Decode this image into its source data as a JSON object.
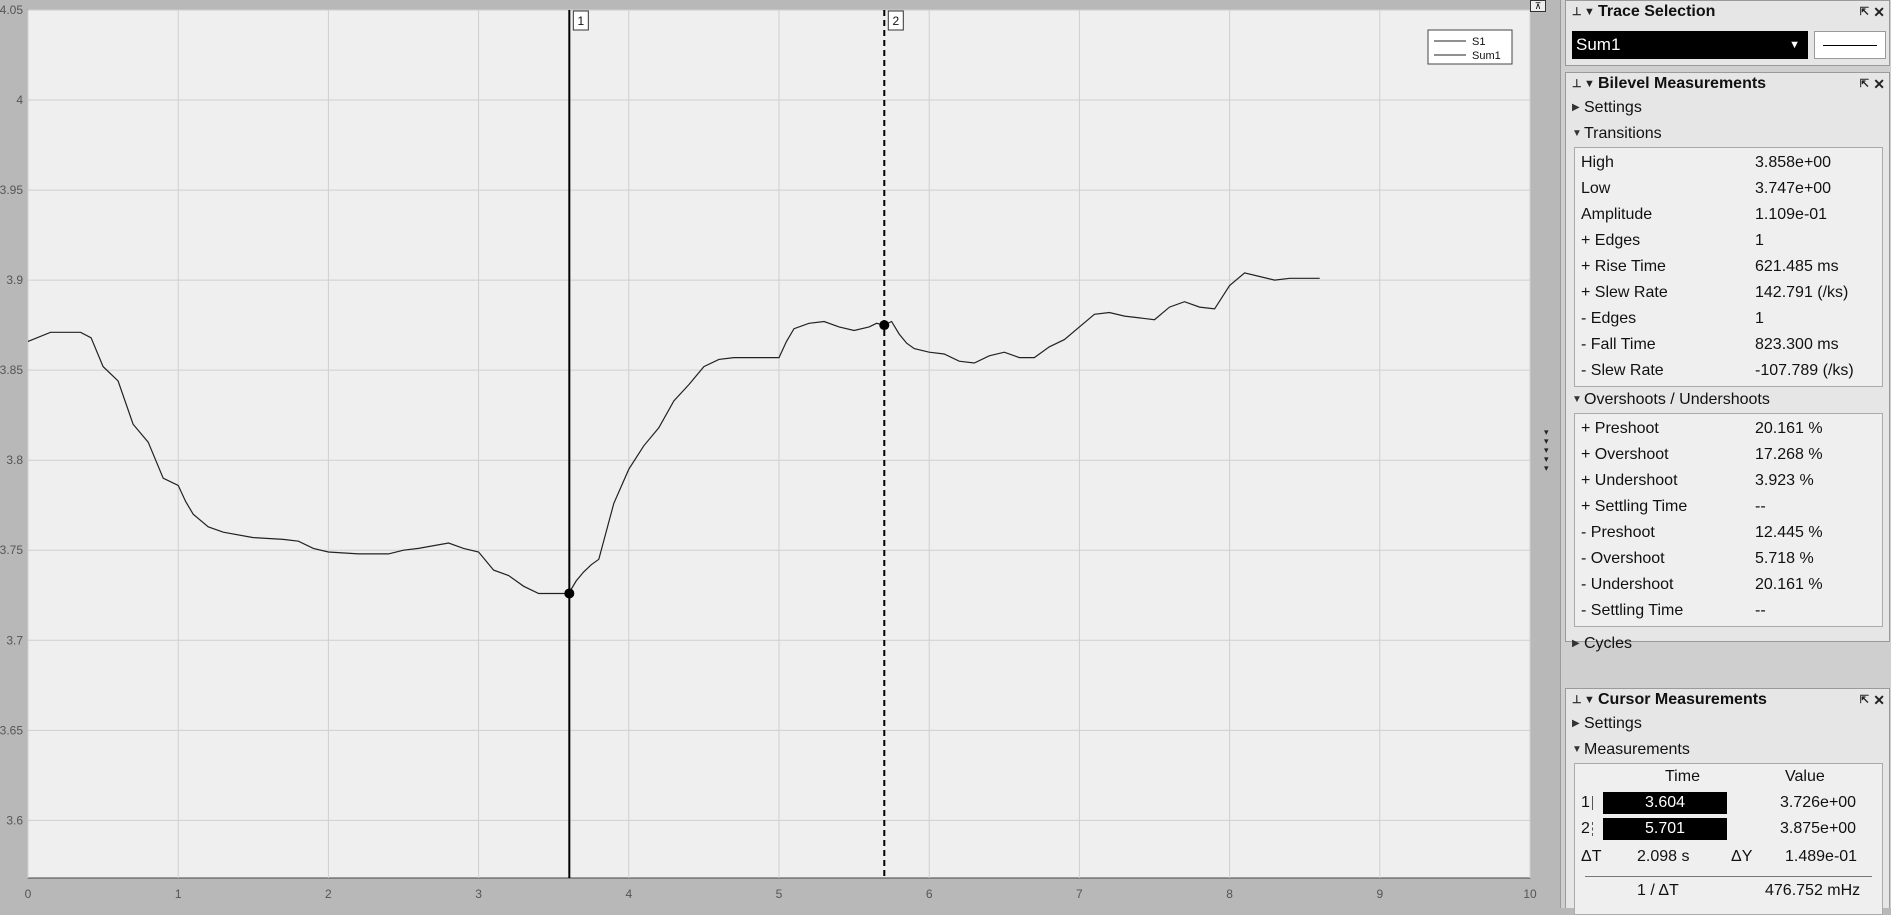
{
  "chart_data": {
    "type": "line",
    "x_ticks": [
      "0",
      "1",
      "2",
      "3",
      "4",
      "5",
      "6",
      "7",
      "8",
      "9",
      "10"
    ],
    "y_ticks": [
      "3.6",
      "3.65",
      "3.7",
      "3.75",
      "3.8",
      "3.85",
      "3.9",
      "3.95",
      "4",
      "4.05"
    ],
    "xlim": [
      0,
      10
    ],
    "ylim": [
      3.568,
      4.05
    ],
    "grid": true,
    "legend": {
      "position": "top-right",
      "entries": [
        "S1",
        "Sum1"
      ]
    },
    "series": [
      {
        "name": "Sum1",
        "x": [
          0,
          0.15,
          0.35,
          0.42,
          0.5,
          0.6,
          0.7,
          0.8,
          0.9,
          1.0,
          1.05,
          1.1,
          1.2,
          1.3,
          1.5,
          1.7,
          1.8,
          1.9,
          2.0,
          2.2,
          2.4,
          2.5,
          2.6,
          2.8,
          2.9,
          3.0,
          3.1,
          3.2,
          3.3,
          3.4,
          3.5,
          3.6,
          3.65,
          3.7,
          3.75,
          3.8,
          3.9,
          4.0,
          4.1,
          4.2,
          4.3,
          4.4,
          4.5,
          4.6,
          4.7,
          4.8,
          5.0,
          5.05,
          5.1,
          5.2,
          5.3,
          5.4,
          5.5,
          5.6,
          5.65,
          5.7,
          5.75,
          5.8,
          5.85,
          5.9,
          6.0,
          6.1,
          6.2,
          6.3,
          6.4,
          6.5,
          6.6,
          6.7,
          6.8,
          6.9,
          7.0,
          7.1,
          7.2,
          7.3,
          7.4,
          7.5,
          7.6,
          7.7,
          7.8,
          7.9,
          8.0,
          8.1,
          8.2,
          8.3,
          8.4,
          8.5,
          8.6
        ],
        "y": [
          3.866,
          3.871,
          3.871,
          3.868,
          3.852,
          3.844,
          3.82,
          3.81,
          3.79,
          3.786,
          3.777,
          3.77,
          3.763,
          3.76,
          3.757,
          3.756,
          3.755,
          3.751,
          3.749,
          3.748,
          3.748,
          3.75,
          3.751,
          3.754,
          3.751,
          3.749,
          3.739,
          3.736,
          3.73,
          3.726,
          3.726,
          3.726,
          3.733,
          3.738,
          3.742,
          3.745,
          3.776,
          3.795,
          3.808,
          3.818,
          3.833,
          3.842,
          3.852,
          3.856,
          3.857,
          3.857,
          3.857,
          3.866,
          3.873,
          3.876,
          3.877,
          3.874,
          3.872,
          3.874,
          3.876,
          3.875,
          3.877,
          3.87,
          3.865,
          3.862,
          3.86,
          3.859,
          3.855,
          3.854,
          3.858,
          3.86,
          3.857,
          3.857,
          3.863,
          3.867,
          3.874,
          3.881,
          3.882,
          3.88,
          3.879,
          3.878,
          3.885,
          3.888,
          3.885,
          3.884,
          3.897,
          3.904,
          3.902,
          3.9,
          3.901,
          3.901,
          3.901
        ]
      }
    ],
    "cursors": [
      {
        "label": "1",
        "x": 3.604,
        "y": 3.726,
        "style": "solid"
      },
      {
        "label": "2",
        "x": 5.701,
        "y": 3.875,
        "style": "dashed"
      }
    ]
  },
  "trace_selection": {
    "title": "Trace Selection",
    "selected": "Sum1"
  },
  "bilevel": {
    "title": "Bilevel Measurements",
    "settings_label": "Settings",
    "transitions_label": "Transitions",
    "transitions": [
      {
        "label": "High",
        "value": "3.858e+00"
      },
      {
        "label": "Low",
        "value": "3.747e+00"
      },
      {
        "label": "Amplitude",
        "value": "1.109e-01"
      },
      {
        "label": "+ Edges",
        "value": "1"
      },
      {
        "label": "+ Rise Time",
        "value": "621.485 ms"
      },
      {
        "label": "+ Slew Rate",
        "value": "142.791 (/ks)"
      },
      {
        "label": "- Edges",
        "value": "1"
      },
      {
        "label": "- Fall Time",
        "value": "823.300 ms"
      },
      {
        "label": "- Slew Rate",
        "value": "-107.789 (/ks)"
      }
    ],
    "overshoots_label": "Overshoots / Undershoots",
    "overshoots": [
      {
        "label": "+ Preshoot",
        "value": "20.161 %"
      },
      {
        "label": "+ Overshoot",
        "value": "17.268 %"
      },
      {
        "label": "+ Undershoot",
        "value": "3.923 %"
      },
      {
        "label": "+ Settling Time",
        "value": "--"
      },
      {
        "label": "- Preshoot",
        "value": "12.445 %"
      },
      {
        "label": "- Overshoot",
        "value": "5.718 %"
      },
      {
        "label": "- Undershoot",
        "value": "20.161 %"
      },
      {
        "label": "- Settling Time",
        "value": "--"
      }
    ],
    "cycles_label": "Cycles"
  },
  "cursor": {
    "title": "Cursor Measurements",
    "settings_label": "Settings",
    "measurements_label": "Measurements",
    "time_header": "Time",
    "value_header": "Value",
    "rows": [
      {
        "id": "1",
        "time": "3.604",
        "value": "3.726e+00"
      },
      {
        "id": "2",
        "time": "5.701",
        "value": "3.875e+00"
      }
    ],
    "delta_t_label": "ΔT",
    "delta_t": "2.098 s",
    "delta_y_label": "ΔY",
    "delta_y": "1.489e-01",
    "inv_label": "1 / ΔT",
    "inv_value": "476.752 mHz"
  }
}
